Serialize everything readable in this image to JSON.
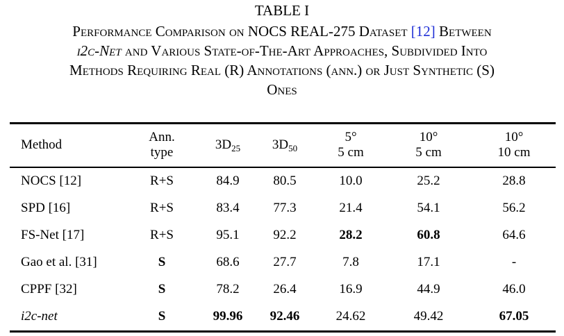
{
  "caption": {
    "label": "TABLE I",
    "lines": [
      [
        {
          "text": "Performance Comparison on NOCS REAL-275 Dataset "
        },
        {
          "text": "[12]",
          "style": "link"
        },
        {
          "text": " Between"
        }
      ],
      [
        {
          "text": "i2c-Net",
          "style": "italic"
        },
        {
          "text": " and Various State-of-The-Art Approaches, Subdivided Into"
        }
      ],
      [
        {
          "text": "Methods Requiring Real (R) Annotations (ann.) or Just Synthetic (S)"
        }
      ],
      [
        {
          "text": "Ones"
        }
      ]
    ]
  },
  "table": {
    "header": [
      {
        "lines": [
          "Method"
        ]
      },
      {
        "lines": [
          "Ann.",
          "type"
        ]
      },
      {
        "main": "3D",
        "sub": "25"
      },
      {
        "main": "3D",
        "sub": "50"
      },
      {
        "lines": [
          "5°",
          "5 cm"
        ]
      },
      {
        "lines": [
          "10°",
          "5 cm"
        ]
      },
      {
        "lines": [
          "10°",
          "10 cm"
        ]
      }
    ],
    "rows": [
      {
        "cells": [
          "NOCS [12]",
          "R+S",
          "84.9",
          "80.5",
          "10.0",
          "25.2",
          "28.8"
        ]
      },
      {
        "cells": [
          "SPD [16]",
          "R+S",
          "83.4",
          "77.3",
          "21.4",
          "54.1",
          "56.2"
        ]
      },
      {
        "cells": [
          "FS-Net [17]",
          "R+S",
          "95.1",
          "92.2",
          "28.2",
          "60.8",
          "64.6"
        ],
        "bold": [
          4,
          5
        ]
      },
      {
        "cells": [
          "Gao et al. [31]",
          "S",
          "68.6",
          "27.7",
          "7.8",
          "17.1",
          "-"
        ],
        "bold": [
          1
        ]
      },
      {
        "cells": [
          "CPPF [32]",
          "S",
          "78.2",
          "26.4",
          "16.9",
          "44.9",
          "46.0"
        ],
        "bold": [
          1
        ]
      },
      {
        "cells": [
          "i2c-net",
          "S",
          "99.96",
          "92.46",
          "24.62",
          "49.42",
          "67.05"
        ],
        "bold": [
          1,
          2,
          3,
          6
        ],
        "italic": [
          0
        ]
      }
    ]
  }
}
